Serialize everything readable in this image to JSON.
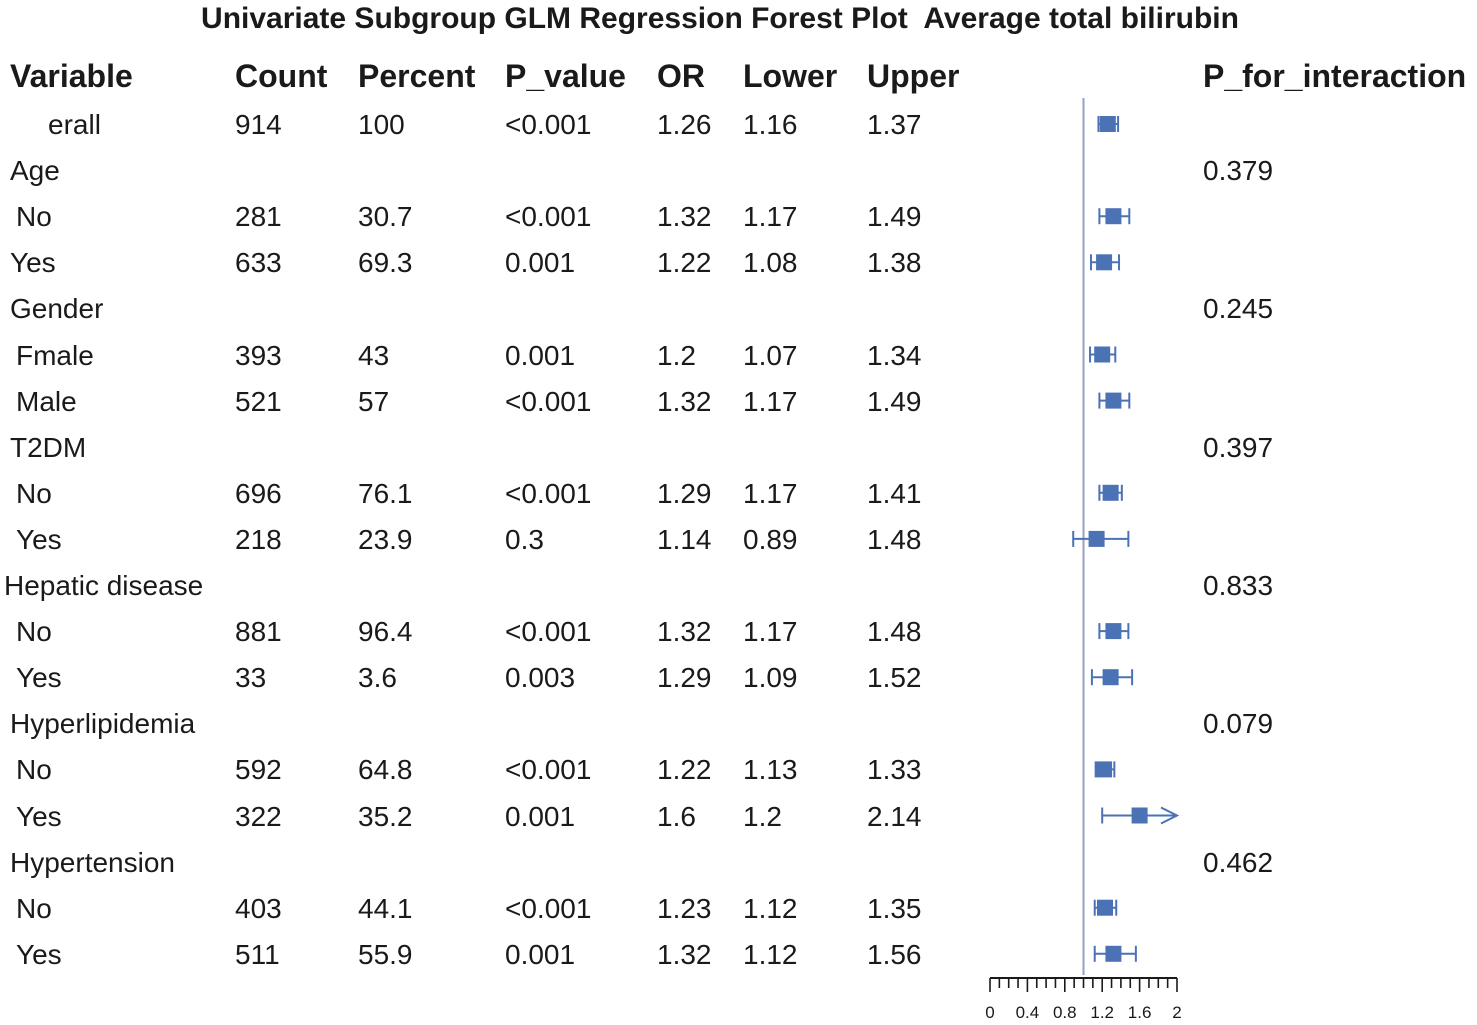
{
  "chart_data": {
    "type": "forest",
    "title": "Univariate Subgroup GLM Regression Forest Plot  Average total bilirubin",
    "columns": [
      "Variable",
      "Count",
      "Percent",
      "P_value",
      "OR",
      "Lower",
      "Upper",
      "P_for_interaction"
    ],
    "reference_line": 1,
    "xlim": [
      0,
      2
    ],
    "xticks": [
      "0",
      "0.4",
      "0.8",
      "1.2",
      "1.6",
      "2"
    ],
    "accent_color": "#4a72b5",
    "rows": [
      {
        "variable": "erall",
        "indent": 2,
        "count": "914",
        "percent": "100",
        "p_value": "<0.001",
        "or": "1.26",
        "lower": "1.16",
        "upper": "1.37",
        "p_interaction": "",
        "or_num": 1.26,
        "lower_num": 1.16,
        "upper_num": 1.37
      },
      {
        "variable": "Age",
        "indent": 0,
        "count": "",
        "percent": "",
        "p_value": "",
        "or": "",
        "lower": "",
        "upper": "",
        "p_interaction": "0.379"
      },
      {
        "variable": "No",
        "indent": 1,
        "count": "281",
        "percent": "30.7",
        "p_value": "<0.001",
        "or": "1.32",
        "lower": "1.17",
        "upper": "1.49",
        "p_interaction": "",
        "or_num": 1.32,
        "lower_num": 1.17,
        "upper_num": 1.49
      },
      {
        "variable": "Yes",
        "indent": 0,
        "count": "633",
        "percent": "69.3",
        "p_value": "0.001",
        "or": "1.22",
        "lower": "1.08",
        "upper": "1.38",
        "p_interaction": "",
        "or_num": 1.22,
        "lower_num": 1.08,
        "upper_num": 1.38
      },
      {
        "variable": "Gender",
        "indent": 0,
        "count": "",
        "percent": "",
        "p_value": "",
        "or": "",
        "lower": "",
        "upper": "",
        "p_interaction": "0.245"
      },
      {
        "variable": "Fmale",
        "indent": 1,
        "count": "393",
        "percent": "43",
        "p_value": "0.001",
        "or": "1.2",
        "lower": "1.07",
        "upper": "1.34",
        "p_interaction": "",
        "or_num": 1.2,
        "lower_num": 1.07,
        "upper_num": 1.34
      },
      {
        "variable": "Male",
        "indent": 1,
        "count": "521",
        "percent": "57",
        "p_value": "<0.001",
        "or": "1.32",
        "lower": "1.17",
        "upper": "1.49",
        "p_interaction": "",
        "or_num": 1.32,
        "lower_num": 1.17,
        "upper_num": 1.49
      },
      {
        "variable": "T2DM",
        "indent": 0,
        "count": "",
        "percent": "",
        "p_value": "",
        "or": "",
        "lower": "",
        "upper": "",
        "p_interaction": "0.397"
      },
      {
        "variable": "No",
        "indent": 1,
        "count": "696",
        "percent": "76.1",
        "p_value": "<0.001",
        "or": "1.29",
        "lower": "1.17",
        "upper": "1.41",
        "p_interaction": "",
        "or_num": 1.29,
        "lower_num": 1.17,
        "upper_num": 1.41
      },
      {
        "variable": "Yes",
        "indent": 1,
        "count": "218",
        "percent": "23.9",
        "p_value": "0.3",
        "or": "1.14",
        "lower": "0.89",
        "upper": "1.48",
        "p_interaction": "",
        "or_num": 1.14,
        "lower_num": 0.89,
        "upper_num": 1.48
      },
      {
        "variable": "Hepatic disease",
        "indent": -1,
        "count": "",
        "percent": "",
        "p_value": "",
        "or": "",
        "lower": "",
        "upper": "",
        "p_interaction": "0.833"
      },
      {
        "variable": "No",
        "indent": 1,
        "count": "881",
        "percent": "96.4",
        "p_value": "<0.001",
        "or": "1.32",
        "lower": "1.17",
        "upper": "1.48",
        "p_interaction": "",
        "or_num": 1.32,
        "lower_num": 1.17,
        "upper_num": 1.48
      },
      {
        "variable": "Yes",
        "indent": 1,
        "count": "33",
        "percent": "3.6",
        "p_value": "0.003",
        "or": "1.29",
        "lower": "1.09",
        "upper": "1.52",
        "p_interaction": "",
        "or_num": 1.29,
        "lower_num": 1.09,
        "upper_num": 1.52
      },
      {
        "variable": "Hyperlipidemia",
        "indent": 0,
        "count": "",
        "percent": "",
        "p_value": "",
        "or": "",
        "lower": "",
        "upper": "",
        "p_interaction": "0.079"
      },
      {
        "variable": "No",
        "indent": 1,
        "count": "592",
        "percent": "64.8",
        "p_value": "<0.001",
        "or": "1.22",
        "lower": "1.13",
        "upper": "1.33",
        "p_interaction": "",
        "or_num": 1.22,
        "lower_num": 1.13,
        "upper_num": 1.33
      },
      {
        "variable": "Yes",
        "indent": 1,
        "count": "322",
        "percent": "35.2",
        "p_value": "0.001",
        "or": "1.6",
        "lower": "1.2",
        "upper": "2.14",
        "p_interaction": "",
        "or_num": 1.6,
        "lower_num": 1.2,
        "upper_num": 2.14
      },
      {
        "variable": "Hypertension",
        "indent": 0,
        "count": "",
        "percent": "",
        "p_value": "",
        "or": "",
        "lower": "",
        "upper": "",
        "p_interaction": "0.462"
      },
      {
        "variable": "No",
        "indent": 1,
        "count": "403",
        "percent": "44.1",
        "p_value": "<0.001",
        "or": "1.23",
        "lower": "1.12",
        "upper": "1.35",
        "p_interaction": "",
        "or_num": 1.23,
        "lower_num": 1.12,
        "upper_num": 1.35
      },
      {
        "variable": "Yes",
        "indent": 1,
        "count": "511",
        "percent": "55.9",
        "p_value": "0.001",
        "or": "1.32",
        "lower": "1.12",
        "upper": "1.56",
        "p_interaction": "",
        "or_num": 1.32,
        "lower_num": 1.12,
        "upper_num": 1.56
      }
    ]
  }
}
